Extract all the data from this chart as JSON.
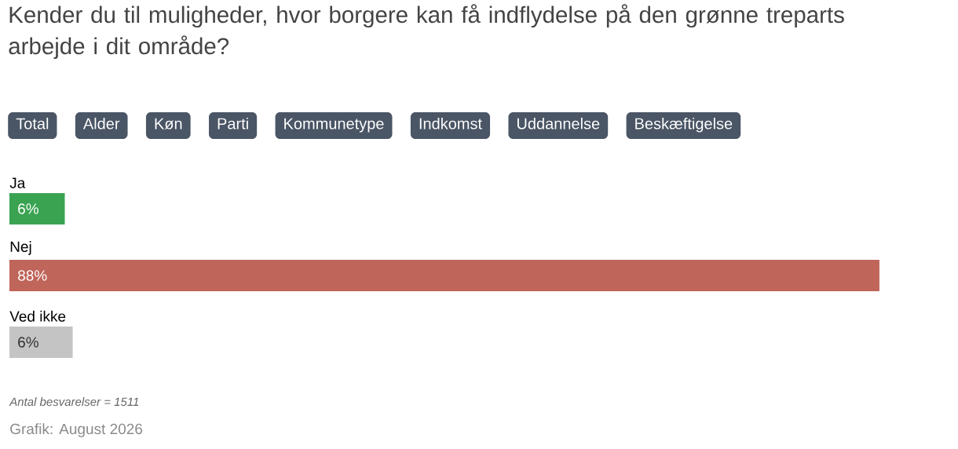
{
  "chart_data": {
    "type": "bar",
    "orientation": "horizontal",
    "title": "Kender du til muligheder, hvor borgere kan få indflydelse på den grønne treparts arbejde i dit område?",
    "categories": [
      "Ja",
      "Nej",
      "Ved ikke"
    ],
    "values": [
      5.6,
      88,
      6.4
    ],
    "value_labels": [
      "6%",
      "88%",
      "6%"
    ],
    "colors": [
      "#3aa352",
      "#c0655a",
      "#c4c4c4"
    ],
    "xlim": [
      0,
      88
    ],
    "annotations": [
      "Total",
      "Alder",
      "Køn",
      "Parti",
      "Kommunetype",
      "Indkomst",
      "Uddannelse",
      "Beskæftigelse",
      "*Antal besvarelser = 1511*",
      "Grafik: August 2026"
    ]
  }
}
